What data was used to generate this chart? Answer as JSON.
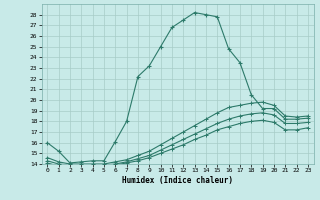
{
  "xlabel": "Humidex (Indice chaleur)",
  "bg_color": "#c8eae8",
  "line_color": "#2d7a6a",
  "grid_color": "#b0d4d0",
  "ylim": [
    14,
    29
  ],
  "xlim": [
    -0.5,
    23.5
  ],
  "yticks": [
    14,
    15,
    16,
    17,
    18,
    19,
    20,
    21,
    22,
    23,
    24,
    25,
    26,
    27,
    28
  ],
  "xticks": [
    0,
    1,
    2,
    3,
    4,
    5,
    6,
    7,
    8,
    9,
    10,
    11,
    12,
    13,
    14,
    15,
    16,
    17,
    18,
    19,
    20,
    21,
    22,
    23
  ],
  "line1_x": [
    0,
    1,
    2,
    3,
    4,
    5,
    6,
    7,
    8,
    9,
    10,
    11,
    12,
    13,
    14,
    15,
    16,
    17,
    18,
    19,
    20,
    21,
    22,
    23
  ],
  "line1_y": [
    16.0,
    15.2,
    14.1,
    14.2,
    14.3,
    14.3,
    16.1,
    18.0,
    22.2,
    23.2,
    25.0,
    26.8,
    27.5,
    28.2,
    28.0,
    27.8,
    24.8,
    23.5,
    20.5,
    19.2,
    19.2,
    18.2,
    18.2,
    18.3
  ],
  "line2_x": [
    0,
    1,
    2,
    3,
    4,
    5,
    6,
    7,
    8,
    9,
    10,
    11,
    12,
    13,
    14,
    15,
    16,
    17,
    18,
    19,
    20,
    21,
    22,
    23
  ],
  "line2_y": [
    14.6,
    14.2,
    14.0,
    14.0,
    14.0,
    14.0,
    14.2,
    14.4,
    14.8,
    15.2,
    15.8,
    16.4,
    17.0,
    17.6,
    18.2,
    18.8,
    19.3,
    19.5,
    19.7,
    19.8,
    19.5,
    18.5,
    18.4,
    18.5
  ],
  "line3_x": [
    0,
    1,
    2,
    3,
    4,
    5,
    6,
    7,
    8,
    9,
    10,
    11,
    12,
    13,
    14,
    15,
    16,
    17,
    18,
    19,
    20,
    21,
    22,
    23
  ],
  "line3_y": [
    14.3,
    14.0,
    13.9,
    13.9,
    13.9,
    13.9,
    14.0,
    14.2,
    14.5,
    14.8,
    15.3,
    15.8,
    16.3,
    16.8,
    17.3,
    17.8,
    18.2,
    18.5,
    18.7,
    18.8,
    18.6,
    17.8,
    17.8,
    17.9
  ],
  "line4_x": [
    0,
    1,
    2,
    3,
    4,
    5,
    6,
    7,
    8,
    9,
    10,
    11,
    12,
    13,
    14,
    15,
    16,
    17,
    18,
    19,
    20,
    21,
    22,
    23
  ],
  "line4_y": [
    14.1,
    13.8,
    13.8,
    13.8,
    13.8,
    13.8,
    13.9,
    14.1,
    14.3,
    14.6,
    15.0,
    15.4,
    15.8,
    16.3,
    16.7,
    17.2,
    17.5,
    17.8,
    18.0,
    18.1,
    17.9,
    17.2,
    17.2,
    17.4
  ]
}
